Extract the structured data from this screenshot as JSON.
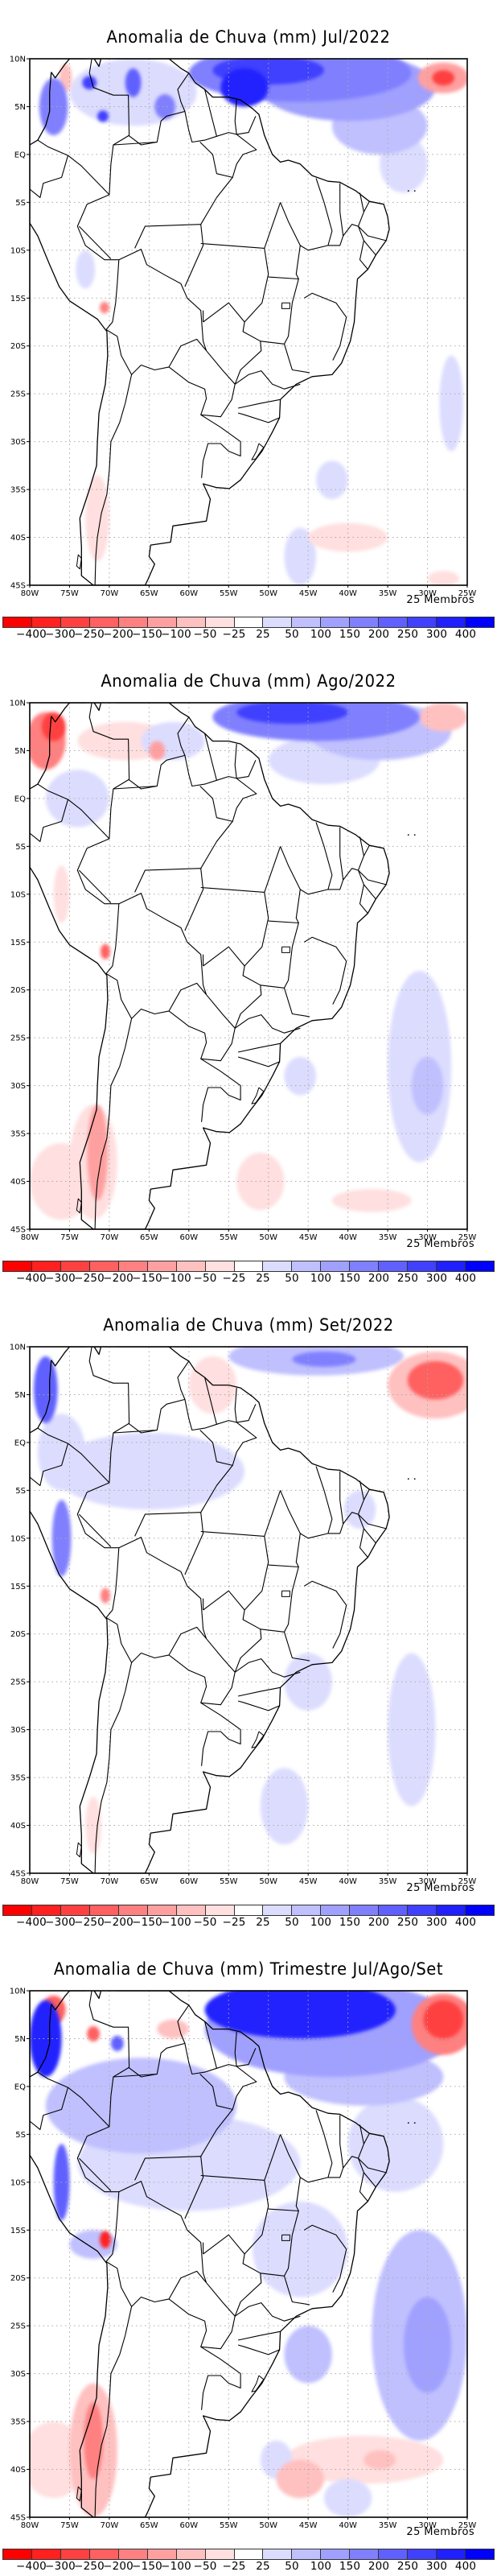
{
  "chart_data": [
    {
      "type": "heatmap",
      "id": "jul",
      "title": "Anomalia de Chuva (mm) Jul/2022",
      "xlabel": "",
      "ylabel": "",
      "members_label": "25 Membros",
      "features": [
        {
          "lon": -46,
          "lat": 8.5,
          "rx": 14,
          "ry": 3,
          "level": 4
        },
        {
          "lon": -50,
          "lat": 8.8,
          "rx": 7,
          "ry": 1.5,
          "level": 6
        },
        {
          "lon": -53,
          "lat": 7,
          "rx": 3,
          "ry": 2,
          "level": 7
        },
        {
          "lon": -40,
          "lat": 7,
          "rx": 11,
          "ry": 3.5,
          "level": 3
        },
        {
          "lon": -36,
          "lat": 3,
          "rx": 6,
          "ry": 3,
          "level": 2
        },
        {
          "lon": -33,
          "lat": -1,
          "rx": 3,
          "ry": 3,
          "level": 1
        },
        {
          "lon": -28,
          "lat": 8,
          "rx": 3.2,
          "ry": 1.6,
          "level": -3
        },
        {
          "lon": -28,
          "lat": 8,
          "rx": 1.4,
          "ry": 0.8,
          "level": -6
        },
        {
          "lon": -77,
          "lat": 5,
          "rx": 1.8,
          "ry": 3,
          "level": 4
        },
        {
          "lon": -67,
          "lat": 6.5,
          "rx": 8,
          "ry": 3.5,
          "level": 1
        },
        {
          "lon": -72.5,
          "lat": 7.5,
          "rx": 0.9,
          "ry": 0.7,
          "level": 6
        },
        {
          "lon": -67,
          "lat": 7.5,
          "rx": 1,
          "ry": 1.5,
          "level": 5
        },
        {
          "lon": -70.8,
          "lat": 4,
          "rx": 0.7,
          "ry": 0.6,
          "level": 6
        },
        {
          "lon": -75.5,
          "lat": 8,
          "rx": 0.8,
          "ry": 1.5,
          "level": -2
        },
        {
          "lon": -63,
          "lat": 5,
          "rx": 1.3,
          "ry": 1.3,
          "level": 4
        },
        {
          "lon": -73,
          "lat": -12,
          "rx": 1.2,
          "ry": 2,
          "level": 1
        },
        {
          "lon": -70.6,
          "lat": -16,
          "rx": 0.6,
          "ry": 0.6,
          "level": -4
        },
        {
          "lon": -71.5,
          "lat": -38,
          "rx": 1.5,
          "ry": 4.5,
          "level": -1
        },
        {
          "lon": -46,
          "lat": -42,
          "rx": 2,
          "ry": 3,
          "level": 1
        },
        {
          "lon": -42,
          "lat": -34,
          "rx": 2,
          "ry": 2,
          "level": 1
        },
        {
          "lon": -40,
          "lat": -40,
          "rx": 5,
          "ry": 1.5,
          "level": -1
        },
        {
          "lon": -27,
          "lat": -26,
          "rx": 1.5,
          "ry": 5,
          "level": 1
        },
        {
          "lon": -28,
          "lat": -44.3,
          "rx": 2,
          "ry": 0.8,
          "level": -1
        }
      ]
    },
    {
      "type": "heatmap",
      "id": "ago",
      "title": "Anomalia de Chuva (mm) Ago/2022",
      "xlabel": "",
      "ylabel": "",
      "members_label": "25 Membros",
      "features": [
        {
          "lon": -44,
          "lat": 8.5,
          "rx": 13,
          "ry": 2.5,
          "level": 4
        },
        {
          "lon": -47,
          "lat": 9,
          "rx": 7,
          "ry": 1.2,
          "level": 6
        },
        {
          "lon": -36,
          "lat": 7,
          "rx": 9,
          "ry": 3,
          "level": 2
        },
        {
          "lon": -43,
          "lat": 4,
          "rx": 7,
          "ry": 2.5,
          "level": 1
        },
        {
          "lon": -28,
          "lat": 8.5,
          "rx": 3,
          "ry": 1.5,
          "level": -2
        },
        {
          "lon": -78,
          "lat": 6,
          "rx": 2.5,
          "ry": 3,
          "level": -4
        },
        {
          "lon": -77,
          "lat": 7.5,
          "rx": 1.5,
          "ry": 1.5,
          "level": -6
        },
        {
          "lon": -68,
          "lat": 6,
          "rx": 6,
          "ry": 2,
          "level": -1
        },
        {
          "lon": -62,
          "lat": 6,
          "rx": 4,
          "ry": 2,
          "level": 1
        },
        {
          "lon": -64,
          "lat": 5,
          "rx": 1,
          "ry": 1,
          "level": -3
        },
        {
          "lon": -74,
          "lat": 0,
          "rx": 4,
          "ry": 3,
          "level": 1
        },
        {
          "lon": -76,
          "lat": -10,
          "rx": 1,
          "ry": 3,
          "level": -1
        },
        {
          "lon": -70.5,
          "lat": -16,
          "rx": 0.6,
          "ry": 0.8,
          "level": -5
        },
        {
          "lon": -72,
          "lat": -38,
          "rx": 3,
          "ry": 6,
          "level": -1
        },
        {
          "lon": -71.5,
          "lat": -37,
          "rx": 1.3,
          "ry": 5,
          "level": -3
        },
        {
          "lon": -76,
          "lat": -40,
          "rx": 4,
          "ry": 4,
          "level": -1
        },
        {
          "lon": -51,
          "lat": -40,
          "rx": 3,
          "ry": 3,
          "level": -1
        },
        {
          "lon": -37,
          "lat": -42,
          "rx": 5,
          "ry": 1.2,
          "level": -1
        },
        {
          "lon": -31,
          "lat": -28,
          "rx": 4,
          "ry": 10,
          "level": 1
        },
        {
          "lon": -30,
          "lat": -30,
          "rx": 2,
          "ry": 3,
          "level": 2
        },
        {
          "lon": -46,
          "lat": -29,
          "rx": 2,
          "ry": 2,
          "level": 1
        }
      ]
    },
    {
      "type": "heatmap",
      "id": "set",
      "title": "Anomalia de Chuva (mm) Set/2022",
      "xlabel": "",
      "ylabel": "",
      "members_label": "25 Membros",
      "features": [
        {
          "lon": -44,
          "lat": 9,
          "rx": 11,
          "ry": 2,
          "level": 2
        },
        {
          "lon": -43,
          "lat": 8.7,
          "rx": 4,
          "ry": 0.8,
          "level": 4
        },
        {
          "lon": -29,
          "lat": 6,
          "rx": 6,
          "ry": 3.5,
          "level": -2
        },
        {
          "lon": -29,
          "lat": 6.5,
          "rx": 3.5,
          "ry": 2,
          "level": -5
        },
        {
          "lon": -78,
          "lat": 5.5,
          "rx": 1.5,
          "ry": 3.5,
          "level": 5
        },
        {
          "lon": -76,
          "lat": -1,
          "rx": 3,
          "ry": 4,
          "level": 1
        },
        {
          "lon": -76,
          "lat": -10,
          "rx": 1.2,
          "ry": 4,
          "level": 4
        },
        {
          "lon": -65,
          "lat": -3,
          "rx": 12,
          "ry": 4,
          "level": 1
        },
        {
          "lon": -57,
          "lat": 6,
          "rx": 3,
          "ry": 3,
          "level": -1
        },
        {
          "lon": -70.5,
          "lat": -16,
          "rx": 0.6,
          "ry": 0.8,
          "level": -4
        },
        {
          "lon": -38.5,
          "lat": -7,
          "rx": 2,
          "ry": 2,
          "level": 1
        },
        {
          "lon": -45,
          "lat": -25,
          "rx": 3,
          "ry": 3,
          "level": 1
        },
        {
          "lon": -48,
          "lat": -38,
          "rx": 3,
          "ry": 4,
          "level": 1
        },
        {
          "lon": -32,
          "lat": -30,
          "rx": 3,
          "ry": 8,
          "level": 1
        },
        {
          "lon": -72,
          "lat": -40,
          "rx": 1,
          "ry": 3,
          "level": -1
        }
      ]
    },
    {
      "type": "heatmap",
      "id": "tri",
      "title": "Anomalia de Chuva (mm) Trimestre Jul/Ago/Set",
      "xlabel": "",
      "ylabel": "",
      "members_label": "25 Membros",
      "features": [
        {
          "lon": -42,
          "lat": 6,
          "rx": 16,
          "ry": 5,
          "level": 3
        },
        {
          "lon": -46,
          "lat": 8,
          "rx": 12,
          "ry": 3,
          "level": 7
        },
        {
          "lon": -38,
          "lat": 1,
          "rx": 10,
          "ry": 3,
          "level": 2
        },
        {
          "lon": -34,
          "lat": -6,
          "rx": 6,
          "ry": 5,
          "level": 1
        },
        {
          "lon": -28,
          "lat": 6.5,
          "rx": 4,
          "ry": 3.2,
          "level": -4
        },
        {
          "lon": -28,
          "lat": 7,
          "rx": 2.5,
          "ry": 2,
          "level": -6
        },
        {
          "lon": -78,
          "lat": 5,
          "rx": 2,
          "ry": 4,
          "level": 7
        },
        {
          "lon": -77,
          "lat": 8,
          "rx": 1.5,
          "ry": 1.5,
          "level": -5
        },
        {
          "lon": -66,
          "lat": -2,
          "rx": 12,
          "ry": 5,
          "level": 2
        },
        {
          "lon": -60,
          "lat": -8,
          "rx": 14,
          "ry": 5,
          "level": 1
        },
        {
          "lon": -62,
          "lat": 6,
          "rx": 2,
          "ry": 1,
          "level": -2
        },
        {
          "lon": -72,
          "lat": 5.5,
          "rx": 0.8,
          "ry": 0.8,
          "level": -5
        },
        {
          "lon": -69,
          "lat": 4.5,
          "rx": 0.8,
          "ry": 0.8,
          "level": 5
        },
        {
          "lon": -76,
          "lat": -10,
          "rx": 1,
          "ry": 4,
          "level": 5
        },
        {
          "lon": -70.5,
          "lat": -16,
          "rx": 0.7,
          "ry": 0.9,
          "level": -7
        },
        {
          "lon": -72,
          "lat": -16.5,
          "rx": 3,
          "ry": 1.5,
          "level": 2
        },
        {
          "lon": -46,
          "lat": -17,
          "rx": 6,
          "ry": 5,
          "level": 1
        },
        {
          "lon": -31,
          "lat": -26,
          "rx": 6,
          "ry": 11,
          "level": 2
        },
        {
          "lon": -30,
          "lat": -27,
          "rx": 3,
          "ry": 5,
          "level": 3
        },
        {
          "lon": -45,
          "lat": -28,
          "rx": 3,
          "ry": 3,
          "level": 2
        },
        {
          "lon": -72,
          "lat": -38,
          "rx": 3,
          "ry": 7,
          "level": -2
        },
        {
          "lon": -72,
          "lat": -37,
          "rx": 1.2,
          "ry": 4,
          "level": -4
        },
        {
          "lon": -77,
          "lat": -39,
          "rx": 4,
          "ry": 4,
          "level": -1
        },
        {
          "lon": -38,
          "lat": -39,
          "rx": 10,
          "ry": 2.5,
          "level": -1
        },
        {
          "lon": -46,
          "lat": -41,
          "rx": 3,
          "ry": 2,
          "level": -2
        },
        {
          "lon": -36,
          "lat": -39,
          "rx": 2,
          "ry": 1,
          "level": -2
        },
        {
          "lon": -49,
          "lat": -39,
          "rx": 2,
          "ry": 2,
          "level": 1
        },
        {
          "lon": -40,
          "lat": -43,
          "rx": 3,
          "ry": 2,
          "level": 1
        }
      ]
    }
  ],
  "axes": {
    "xlim": [
      -80,
      -25
    ],
    "ylim": [
      -45,
      10
    ],
    "xticks": [
      {
        "v": -80,
        "label": "80W"
      },
      {
        "v": -75,
        "label": "75W"
      },
      {
        "v": -70,
        "label": "70W"
      },
      {
        "v": -65,
        "label": "65W"
      },
      {
        "v": -60,
        "label": "60W"
      },
      {
        "v": -55,
        "label": "55W"
      },
      {
        "v": -50,
        "label": "50W"
      },
      {
        "v": -45,
        "label": "45W"
      },
      {
        "v": -40,
        "label": "40W"
      },
      {
        "v": -35,
        "label": "35W"
      },
      {
        "v": -30,
        "label": "30W"
      },
      {
        "v": -25,
        "label": "25W"
      }
    ],
    "yticks": [
      {
        "v": 10,
        "label": "10N"
      },
      {
        "v": 5,
        "label": "5N"
      },
      {
        "v": 0,
        "label": "EQ"
      },
      {
        "v": -5,
        "label": "5S"
      },
      {
        "v": -10,
        "label": "10S"
      },
      {
        "v": -15,
        "label": "15S"
      },
      {
        "v": -20,
        "label": "20S"
      },
      {
        "v": -25,
        "label": "25S"
      },
      {
        "v": -30,
        "label": "30S"
      },
      {
        "v": -35,
        "label": "35S"
      },
      {
        "v": -40,
        "label": "40S"
      },
      {
        "v": -45,
        "label": "45S"
      }
    ],
    "grid": true
  },
  "legend": {
    "colors": [
      "#ff0000",
      "#ff2020",
      "#ff4040",
      "#ff6060",
      "#ff8080",
      "#ffa0a0",
      "#ffc0c0",
      "#ffdfdf",
      "#ffffff",
      "#dcdcff",
      "#c0c0ff",
      "#a0a0ff",
      "#8080ff",
      "#6060ff",
      "#4040ff",
      "#2020ff",
      "#0000ff"
    ],
    "labels": [
      "-400",
      "-300",
      "-250",
      "-200",
      "-150",
      "-100",
      "-50",
      "-25",
      "25",
      "50",
      "100",
      "150",
      "200",
      "250",
      "300",
      "400"
    ],
    "placement": "bottom"
  }
}
